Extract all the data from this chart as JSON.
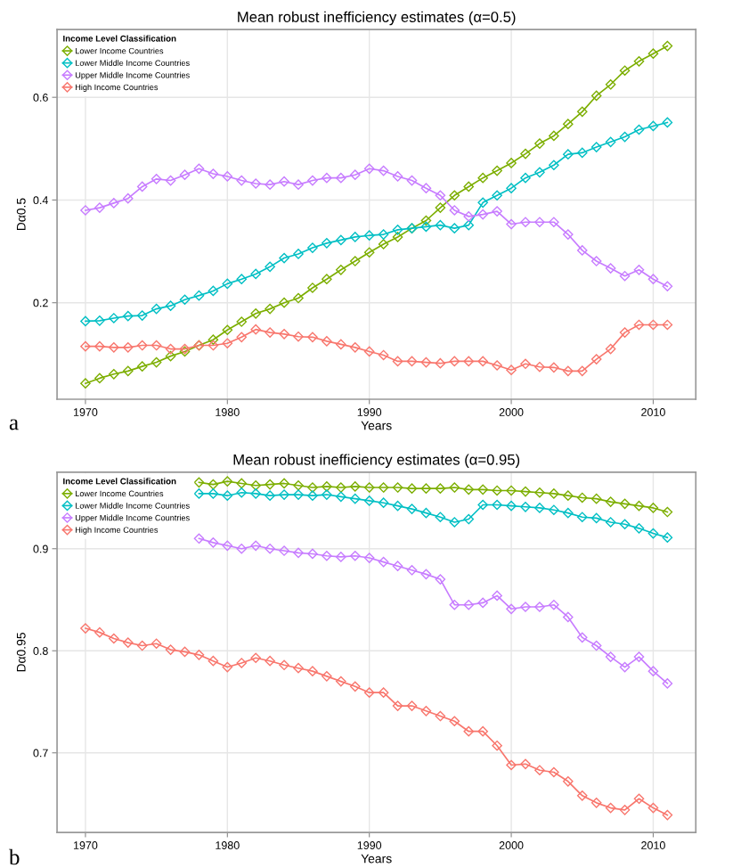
{
  "chart_data": [
    {
      "type": "line",
      "title": "Mean robust inefficiency estimates (α=0.5)",
      "xlabel": "Years",
      "ylabel": "Dα0.5",
      "legend_title": "Income Level Classification",
      "legend": "top left",
      "grid": true,
      "marker": "diamond",
      "line_style": "solid",
      "x": [
        1970,
        1971,
        1972,
        1973,
        1974,
        1975,
        1976,
        1977,
        1978,
        1979,
        1980,
        1981,
        1982,
        1983,
        1984,
        1985,
        1986,
        1987,
        1988,
        1989,
        1990,
        1991,
        1992,
        1993,
        1994,
        1995,
        1996,
        1997,
        1998,
        1999,
        2000,
        2001,
        2002,
        2003,
        2004,
        2005,
        2006,
        2007,
        2008,
        2009,
        2010,
        2011
      ],
      "xlim": [
        1968,
        2013
      ],
      "xticks": [
        1970,
        1980,
        1990,
        2000,
        2010
      ],
      "ylim": [
        0.012,
        0.732
      ],
      "yticks": [
        0.2,
        0.4,
        0.6
      ],
      "annotations": [
        "a"
      ],
      "series": [
        {
          "name": "Lower Income Countries",
          "color": "#7cae00",
          "values": [
            0.043,
            0.053,
            0.061,
            0.067,
            0.076,
            0.084,
            0.096,
            0.105,
            0.117,
            0.128,
            0.147,
            0.163,
            0.179,
            0.188,
            0.2,
            0.209,
            0.229,
            0.246,
            0.264,
            0.281,
            0.298,
            0.314,
            0.328,
            0.345,
            0.36,
            0.385,
            0.409,
            0.426,
            0.443,
            0.457,
            0.472,
            0.49,
            0.51,
            0.525,
            0.548,
            0.572,
            0.603,
            0.625,
            0.652,
            0.67,
            0.685,
            0.7
          ]
        },
        {
          "name": "Lower Middle Income Countries",
          "color": "#00bfc4",
          "values": [
            0.164,
            0.165,
            0.17,
            0.174,
            0.175,
            0.188,
            0.194,
            0.206,
            0.214,
            0.223,
            0.237,
            0.246,
            0.256,
            0.27,
            0.287,
            0.295,
            0.307,
            0.316,
            0.322,
            0.328,
            0.331,
            0.333,
            0.342,
            0.345,
            0.348,
            0.351,
            0.345,
            0.351,
            0.395,
            0.409,
            0.423,
            0.443,
            0.454,
            0.468,
            0.489,
            0.492,
            0.503,
            0.513,
            0.523,
            0.537,
            0.544,
            0.551
          ]
        },
        {
          "name": "Upper Middle Income Countries",
          "color": "#c77cff",
          "values": [
            0.38,
            0.385,
            0.394,
            0.403,
            0.426,
            0.441,
            0.438,
            0.449,
            0.461,
            0.451,
            0.446,
            0.438,
            0.432,
            0.43,
            0.436,
            0.43,
            0.438,
            0.443,
            0.443,
            0.449,
            0.461,
            0.457,
            0.446,
            0.438,
            0.423,
            0.409,
            0.38,
            0.368,
            0.372,
            0.378,
            0.353,
            0.357,
            0.357,
            0.357,
            0.333,
            0.302,
            0.281,
            0.267,
            0.252,
            0.264,
            0.246,
            0.232
          ]
        },
        {
          "name": "High Income Countries",
          "color": "#f8766d",
          "values": [
            0.115,
            0.115,
            0.113,
            0.113,
            0.117,
            0.117,
            0.11,
            0.11,
            0.117,
            0.117,
            0.121,
            0.133,
            0.148,
            0.142,
            0.139,
            0.134,
            0.133,
            0.125,
            0.119,
            0.113,
            0.105,
            0.098,
            0.086,
            0.086,
            0.084,
            0.082,
            0.086,
            0.086,
            0.086,
            0.078,
            0.069,
            0.081,
            0.075,
            0.074,
            0.067,
            0.067,
            0.09,
            0.11,
            0.142,
            0.157,
            0.157,
            0.157
          ]
        }
      ]
    },
    {
      "type": "line",
      "title": "Mean robust inefficiency estimates (α=0.95)",
      "xlabel": "Years",
      "ylabel": "Dα0.95",
      "legend_title": "Income Level Classification",
      "legend": "top left",
      "grid": true,
      "marker": "diamond",
      "line_style": "solid",
      "x": [
        1970,
        1971,
        1972,
        1973,
        1974,
        1975,
        1976,
        1977,
        1978,
        1979,
        1980,
        1981,
        1982,
        1983,
        1984,
        1985,
        1986,
        1987,
        1988,
        1989,
        1990,
        1991,
        1992,
        1993,
        1994,
        1995,
        1996,
        1997,
        1998,
        1999,
        2000,
        2001,
        2002,
        2003,
        2004,
        2005,
        2006,
        2007,
        2008,
        2009,
        2010,
        2011
      ],
      "xlim": [
        1968,
        2013
      ],
      "xticks": [
        1970,
        1980,
        1990,
        2000,
        2010
      ],
      "ylim": [
        0.622,
        0.975
      ],
      "yticks": [
        0.7,
        0.8,
        0.9
      ],
      "annotations": [
        "b"
      ],
      "series": [
        {
          "name": "Lower Income Countries",
          "color": "#7cae00",
          "values": [
            null,
            null,
            null,
            null,
            null,
            null,
            null,
            null,
            0.965,
            0.963,
            0.966,
            0.964,
            0.962,
            0.963,
            0.964,
            0.962,
            0.96,
            0.961,
            0.96,
            0.961,
            0.96,
            0.96,
            0.96,
            0.959,
            0.959,
            0.959,
            0.96,
            0.958,
            0.958,
            0.957,
            0.957,
            0.956,
            0.955,
            0.954,
            0.952,
            0.95,
            0.949,
            0.946,
            0.944,
            0.942,
            0.94,
            0.936
          ]
        },
        {
          "name": "Lower Middle Income Countries",
          "color": "#00bfc4",
          "values": [
            null,
            null,
            null,
            null,
            null,
            null,
            null,
            null,
            0.954,
            0.954,
            0.952,
            0.955,
            0.954,
            0.952,
            0.953,
            0.953,
            0.952,
            0.953,
            0.951,
            0.949,
            0.947,
            0.945,
            0.942,
            0.939,
            0.935,
            0.931,
            0.926,
            0.929,
            0.943,
            0.943,
            0.942,
            0.941,
            0.94,
            0.938,
            0.935,
            0.931,
            0.93,
            0.926,
            0.924,
            0.92,
            0.915,
            0.911
          ]
        },
        {
          "name": "Upper Middle Income Countries",
          "color": "#c77cff",
          "values": [
            null,
            null,
            null,
            null,
            null,
            null,
            null,
            null,
            0.91,
            0.906,
            0.903,
            0.9,
            0.903,
            0.9,
            0.898,
            0.896,
            0.895,
            0.893,
            0.892,
            0.893,
            0.891,
            0.887,
            0.883,
            0.879,
            0.875,
            0.87,
            0.845,
            0.845,
            0.847,
            0.854,
            0.841,
            0.843,
            0.843,
            0.845,
            0.833,
            0.813,
            0.805,
            0.794,
            0.784,
            0.794,
            0.78,
            0.768
          ]
        },
        {
          "name": "High Income Countries",
          "color": "#f8766d",
          "values": [
            0.822,
            0.818,
            0.812,
            0.808,
            0.805,
            0.807,
            0.801,
            0.799,
            0.796,
            0.79,
            0.784,
            0.788,
            0.793,
            0.79,
            0.786,
            0.783,
            0.78,
            0.775,
            0.77,
            0.765,
            0.759,
            0.759,
            0.746,
            0.746,
            0.741,
            0.736,
            0.731,
            0.721,
            0.721,
            0.707,
            0.688,
            0.689,
            0.683,
            0.681,
            0.672,
            0.658,
            0.651,
            0.646,
            0.644,
            0.655,
            0.646,
            0.639
          ]
        }
      ]
    }
  ]
}
